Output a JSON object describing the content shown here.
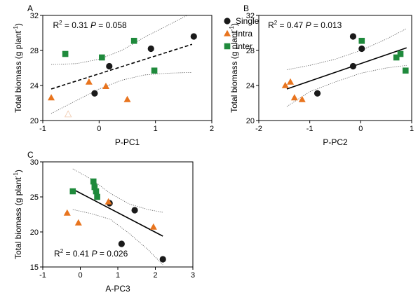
{
  "legend": {
    "items": [
      {
        "label": "Single",
        "shape": "circle",
        "color": "#1a1a1a"
      },
      {
        "label": "Intra",
        "shape": "triangle",
        "color": "#e8741e"
      },
      {
        "label": "Inter",
        "shape": "square",
        "color": "#1f8a3c"
      }
    ]
  },
  "colors": {
    "single": "#1a1a1a",
    "intra": "#e8741e",
    "inter": "#1f8a3c",
    "ci": "#555555"
  },
  "chart_data": [
    {
      "type": "scatter",
      "panel": "A",
      "xlabel": "P-PC1",
      "ylabel": "Total biomass (g plant",
      "ylabel_sup": "-1",
      "ylabel_end": ")",
      "xlim": [
        -1,
        2
      ],
      "ylim": [
        20,
        32
      ],
      "xticks": [
        -1,
        0,
        1,
        2
      ],
      "yticks": [
        20,
        24,
        28,
        32
      ],
      "annotation": {
        "r2": "R",
        "r2_sup": "2",
        "r2_value": " = 0.31 ",
        "p": "P",
        "p_value": " = 0.058",
        "x": -0.82,
        "y": 30.9
      },
      "fit": {
        "style": "dashed",
        "x": [
          -0.85,
          1.65
        ],
        "y": [
          23.6,
          28.7
        ]
      },
      "ci_upper": [
        [
          -0.85,
          26.4
        ],
        [
          -0.4,
          26.5
        ],
        [
          0.0,
          27.0
        ],
        [
          0.4,
          28.0
        ],
        [
          0.8,
          29.5
        ],
        [
          1.2,
          30.8
        ],
        [
          1.65,
          32.3
        ]
      ],
      "ci_lower": [
        [
          -0.85,
          20.8
        ],
        [
          -0.4,
          22.3
        ],
        [
          0.0,
          23.6
        ],
        [
          0.4,
          24.6
        ],
        [
          0.8,
          25.2
        ],
        [
          1.2,
          25.4
        ],
        [
          1.65,
          25.5
        ]
      ],
      "series": [
        {
          "name": "Single",
          "shape": "circle",
          "x": [
            -0.08,
            0.18,
            0.92,
            1.68
          ],
          "y": [
            23.1,
            26.2,
            28.2,
            29.6
          ]
        },
        {
          "name": "Intra",
          "shape": "triangle",
          "x": [
            -0.85,
            -0.18,
            0.12,
            0.5
          ],
          "y": [
            22.6,
            24.4,
            23.9,
            22.4
          ]
        },
        {
          "name": "Inter",
          "shape": "square",
          "x": [
            -0.6,
            0.05,
            0.62,
            0.98
          ],
          "y": [
            27.6,
            27.2,
            29.1,
            25.7
          ]
        },
        {
          "name": "",
          "shape": "triangle-outline",
          "x": [
            -0.55
          ],
          "y": [
            20.7
          ]
        }
      ]
    },
    {
      "type": "scatter",
      "panel": "B",
      "xlabel": "P-PC2",
      "ylabel": "Total biomass (g plant",
      "ylabel_sup": "-1",
      "ylabel_end": ")",
      "xlim": [
        -2,
        1
      ],
      "ylim": [
        20,
        32
      ],
      "xticks": [
        -2,
        -1,
        0,
        1
      ],
      "yticks": [
        20,
        24,
        28,
        32
      ],
      "annotation": {
        "r2": "R",
        "r2_sup": "2",
        "r2_value": " = 0.47 ",
        "p": "P",
        "p_value": " = 0.013",
        "x": -1.82,
        "y": 30.9
      },
      "fit": {
        "style": "solid",
        "x": [
          -1.45,
          0.9
        ],
        "y": [
          23.6,
          28.3
        ]
      },
      "ci_upper": [
        [
          -1.45,
          25.8
        ],
        [
          -1.0,
          26.3
        ],
        [
          -0.5,
          27.0
        ],
        [
          0.0,
          28.0
        ],
        [
          0.5,
          29.3
        ],
        [
          0.9,
          30.5
        ]
      ],
      "ci_lower": [
        [
          -1.45,
          21.6
        ],
        [
          -1.0,
          23.3
        ],
        [
          -0.5,
          24.4
        ],
        [
          0.0,
          25.4
        ],
        [
          0.5,
          26.0
        ],
        [
          0.9,
          26.3
        ]
      ],
      "series": [
        {
          "name": "Single",
          "shape": "circle",
          "x": [
            -0.85,
            -0.15,
            -0.15,
            0.02
          ],
          "y": [
            23.1,
            26.2,
            29.6,
            28.2
          ]
        },
        {
          "name": "Intra",
          "shape": "triangle",
          "x": [
            -1.48,
            -1.38,
            -1.3,
            -1.15
          ],
          "y": [
            24.0,
            24.4,
            22.6,
            22.4
          ]
        },
        {
          "name": "Inter",
          "shape": "square",
          "x": [
            0.02,
            0.7,
            0.78,
            0.88
          ],
          "y": [
            29.1,
            27.2,
            27.6,
            25.7
          ]
        }
      ]
    },
    {
      "type": "scatter",
      "panel": "C",
      "xlabel": "A-PC3",
      "ylabel": "Total biomass (g plant",
      "ylabel_sup": "-1",
      "ylabel_end": ")",
      "xlim": [
        -1,
        3
      ],
      "ylim": [
        15,
        30
      ],
      "xticks": [
        -1,
        0,
        1,
        2,
        3
      ],
      "yticks": [
        15,
        20,
        25,
        30
      ],
      "annotation": {
        "r2": "R",
        "r2_sup": "2",
        "r2_value": " = 0.41 ",
        "p": "P",
        "p_value": " = 0.026",
        "x": -0.7,
        "y": 16.9
      },
      "fit": {
        "style": "solid",
        "x": [
          -0.2,
          2.2
        ],
        "y": [
          26.1,
          19.4
        ]
      },
      "ci_upper": [
        [
          -0.2,
          29.0
        ],
        [
          0.3,
          27.5
        ],
        [
          0.8,
          25.5
        ],
        [
          1.3,
          24.0
        ],
        [
          1.8,
          23.2
        ],
        [
          2.2,
          22.8
        ]
      ],
      "ci_lower": [
        [
          -0.2,
          23.2
        ],
        [
          0.3,
          22.6
        ],
        [
          0.8,
          21.8
        ],
        [
          1.3,
          19.8
        ],
        [
          1.8,
          17.5
        ],
        [
          2.2,
          15.3
        ]
      ],
      "series": [
        {
          "name": "Single",
          "shape": "circle",
          "x": [
            0.78,
            1.1,
            1.45,
            2.2
          ],
          "y": [
            24.1,
            18.3,
            23.1,
            16.1
          ]
        },
        {
          "name": "Intra",
          "shape": "triangle",
          "x": [
            -0.35,
            -0.05,
            0.75,
            1.95
          ],
          "y": [
            22.7,
            21.3,
            24.3,
            20.7
          ]
        },
        {
          "name": "Inter",
          "shape": "square",
          "x": [
            -0.2,
            0.35,
            0.38,
            0.42,
            0.45
          ],
          "y": [
            25.8,
            27.2,
            26.4,
            25.8,
            25.0
          ]
        }
      ]
    }
  ]
}
